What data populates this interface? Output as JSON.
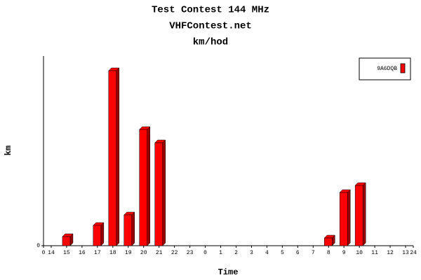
{
  "chart_data": {
    "type": "bar",
    "title": "Test Contest 144 MHz",
    "subtitle": "VHFContest.net",
    "units_title": "km/hod",
    "y_label": "km",
    "x_label": "Time",
    "categories": [
      "14",
      "15",
      "16",
      "17",
      "18",
      "19",
      "20",
      "21",
      "22",
      "23",
      "0",
      "1",
      "2",
      "3",
      "4",
      "5",
      "6",
      "7",
      "8",
      "9",
      "10",
      "11",
      "12",
      "13"
    ],
    "series": [
      {
        "name": "9A6DQB",
        "color": "#ff0000",
        "values": [
          0,
          13,
          0,
          29,
          250,
          44,
          166,
          147,
          0,
          0,
          0,
          0,
          0,
          0,
          0,
          0,
          0,
          0,
          11,
          76,
          86,
          0,
          0,
          0
        ]
      }
    ],
    "xlim": [
      0,
      24
    ],
    "xticks": [
      0,
      24
    ],
    "ylim": [
      0,
      271
    ],
    "yticks": [
      0
    ],
    "legend": "top-right"
  }
}
